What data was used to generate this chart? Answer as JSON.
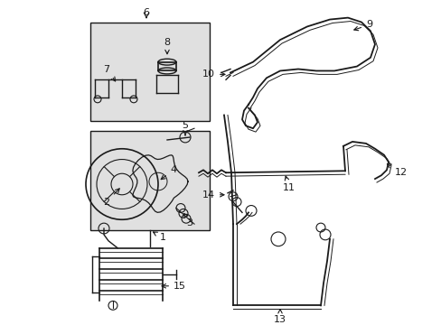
{
  "bg_color": "#ffffff",
  "line_color": "#1a1a1a",
  "box_fill": "#e0e0e0",
  "figsize": [
    4.89,
    3.6
  ],
  "dpi": 100
}
